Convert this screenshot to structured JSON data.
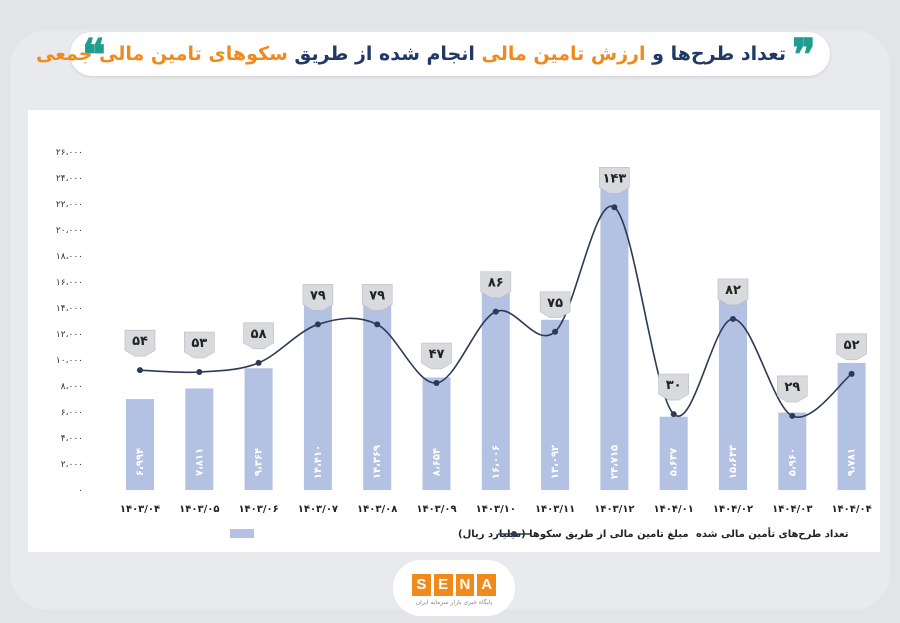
{
  "title": {
    "part1": "تعداد طرح‌ها",
    "part2": " و ",
    "part3": "ارزش تامین مالی",
    "part4": " انجام شده از طریق ",
    "part5": "سکوهای تامین مالی جمعی"
  },
  "colors": {
    "bar": "#b3c2e3",
    "line": "#2c3a56",
    "accent": "#f08a1c",
    "dark": "#1f3a66",
    "teal": "#1f9e8f"
  },
  "logo": {
    "letters": [
      "S",
      "E",
      "N",
      "A"
    ],
    "subtitle": "پایگاه خبری بازار سرمایه ایران"
  },
  "chart_data": {
    "type": "bar",
    "categories": [
      "۱۴۰۳/۰۴",
      "۱۴۰۳/۰۵",
      "۱۴۰۳/۰۶",
      "۱۴۰۳/۰۷",
      "۱۴۰۳/۰۸",
      "۱۴۰۳/۰۹",
      "۱۴۰۳/۱۰",
      "۱۴۰۳/۱۱",
      "۱۴۰۳/۱۲",
      "۱۴۰۴/۰۱",
      "۱۴۰۴/۰۲",
      "۱۴۰۴/۰۳",
      "۱۴۰۴/۰۴"
    ],
    "ylim": [
      0,
      26000
    ],
    "yticks": [
      0,
      2000,
      4000,
      6000,
      8000,
      10000,
      12000,
      14000,
      16000,
      18000,
      20000,
      22000,
      24000,
      26000
    ],
    "ytick_labels": [
      "۰",
      "۲،۰۰۰",
      "۴،۰۰۰",
      "۶،۰۰۰",
      "۸،۰۰۰",
      "۱۰،۰۰۰",
      "۱۲،۰۰۰",
      "۱۴،۰۰۰",
      "۱۶،۰۰۰",
      "۱۸،۰۰۰",
      "۲۰،۰۰۰",
      "۲۲،۰۰۰",
      "۲۴،۰۰۰",
      "۲۶،۰۰۰"
    ],
    "series": [
      {
        "name": "مبلغ تامین مالی از طریق سکوها (میلیارد ریال)",
        "type": "bar",
        "values": [
          6994,
          7811,
          9364,
          14410,
          14369,
          8654,
          16006,
          13092,
          24715,
          5637,
          15643,
          5960,
          9781
        ],
        "labels": [
          "۶،۹۹۴",
          "۷،۸۱۱",
          "۹،۳۶۴",
          "۱۴،۴۱۰",
          "۱۴،۳۶۹",
          "۸،۶۵۴",
          "۱۶،۰۰۶",
          "۱۳،۰۹۲",
          "۲۴،۷۱۵",
          "۵،۶۳۷",
          "۱۵،۶۴۳",
          "۵،۹۶۰",
          "۹،۷۸۱"
        ]
      },
      {
        "name": "تعداد طرح‌های تأمین مالی شده",
        "type": "line",
        "values": [
          54,
          53,
          58,
          79,
          79,
          47,
          86,
          75,
          143,
          30,
          82,
          29,
          52
        ],
        "labels": [
          "۵۴",
          "۵۳",
          "۵۸",
          "۷۹",
          "۷۹",
          "۴۷",
          "۸۶",
          "۷۵",
          "۱۴۳",
          "۳۰",
          "۸۲",
          "۲۹",
          "۵۲"
        ]
      }
    ],
    "legend_position": "bottom",
    "grid": false
  }
}
